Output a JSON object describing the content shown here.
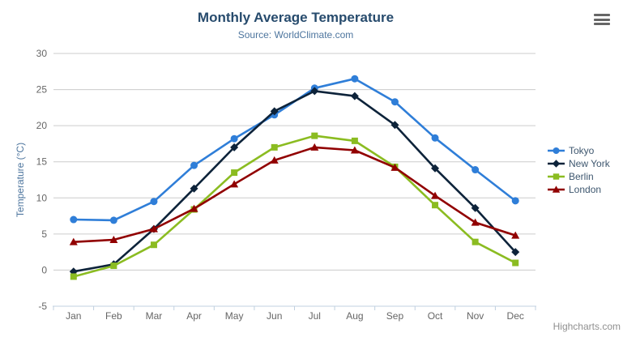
{
  "chart_data": {
    "type": "line",
    "title": "Monthly Average Temperature",
    "subtitle": "Source: WorldClimate.com",
    "xlabel": "",
    "ylabel": "Temperature (°C)",
    "categories": [
      "Jan",
      "Feb",
      "Mar",
      "Apr",
      "May",
      "Jun",
      "Jul",
      "Aug",
      "Sep",
      "Oct",
      "Nov",
      "Dec"
    ],
    "ylim": [
      -5,
      30
    ],
    "ytick_step": 5,
    "grid": true,
    "legend_position": "right",
    "series": [
      {
        "name": "Tokyo",
        "color": "#2f7ed8",
        "marker": "circle",
        "values": [
          7.0,
          6.9,
          9.5,
          14.5,
          18.2,
          21.5,
          25.2,
          26.5,
          23.3,
          18.3,
          13.9,
          9.6
        ]
      },
      {
        "name": "New York",
        "color": "#0d233a",
        "marker": "diamond",
        "values": [
          -0.2,
          0.8,
          5.7,
          11.3,
          17.0,
          22.0,
          24.8,
          24.1,
          20.1,
          14.1,
          8.6,
          2.5
        ]
      },
      {
        "name": "Berlin",
        "color": "#8bbc21",
        "marker": "square",
        "values": [
          -0.9,
          0.6,
          3.5,
          8.4,
          13.5,
          17.0,
          18.6,
          17.9,
          14.3,
          9.0,
          3.9,
          1.0
        ]
      },
      {
        "name": "London",
        "color": "#910000",
        "marker": "triangle",
        "values": [
          3.9,
          4.2,
          5.7,
          8.5,
          11.9,
          15.2,
          17.0,
          16.6,
          14.2,
          10.3,
          6.6,
          4.8
        ]
      }
    ]
  },
  "credits": {
    "label": "Highcharts.com"
  },
  "colors": {
    "title": "#274b6d",
    "subtitle": "#4d759e",
    "axis_title": "#4d759e",
    "tick_label": "#666666",
    "grid_line": "#cccccc",
    "axis_line": "#c0d0e0",
    "legend_text": "#3e576f",
    "credits_text": "#909090",
    "menu_icon": "#666666"
  }
}
